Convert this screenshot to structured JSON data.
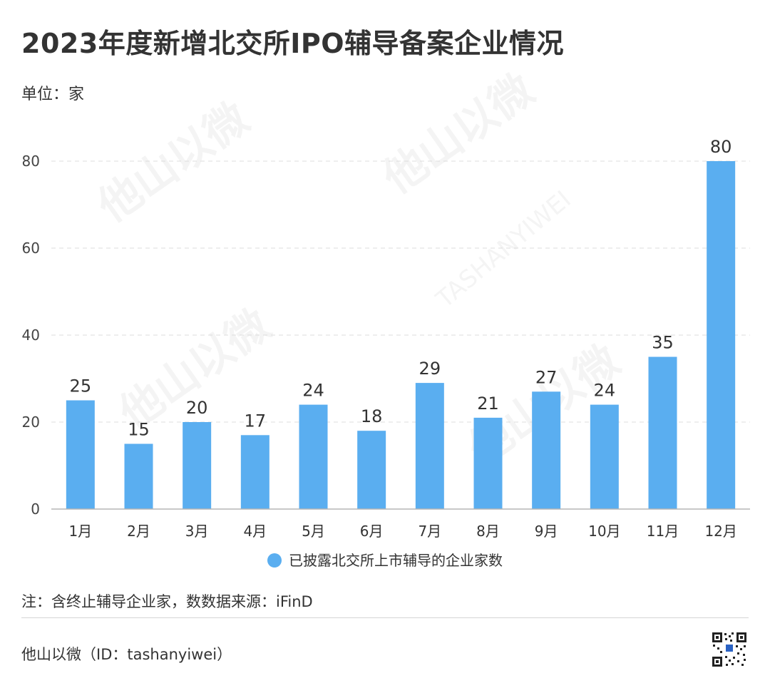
{
  "header": {
    "title": "2023年度新增北交所IPO辅导备案企业情况",
    "unit": "单位：家"
  },
  "legend": {
    "label": "已披露北交所上市辅导的企业家数",
    "color": "#5aaef0"
  },
  "note": "注：含终止辅导企业家，数数据来源：iFinD",
  "footer": {
    "source": "他山以微（ID：tashanyiwei）"
  },
  "watermark": {
    "text": "TASHANYIWEI",
    "glyphs": "他山以微"
  },
  "chart_data": {
    "type": "bar",
    "categories": [
      "1月",
      "2月",
      "3月",
      "4月",
      "5月",
      "6月",
      "7月",
      "8月",
      "9月",
      "10月",
      "11月",
      "12月"
    ],
    "series": [
      {
        "name": "已披露北交所上市辅导的企业家数",
        "values": [
          25,
          15,
          20,
          17,
          24,
          18,
          29,
          21,
          27,
          24,
          35,
          80
        ],
        "color": "#5aaef0"
      }
    ],
    "ylim": [
      0,
      80
    ],
    "yticks": [
      0,
      20,
      40,
      60,
      80
    ],
    "grid": true,
    "legend_position": "bottom"
  }
}
